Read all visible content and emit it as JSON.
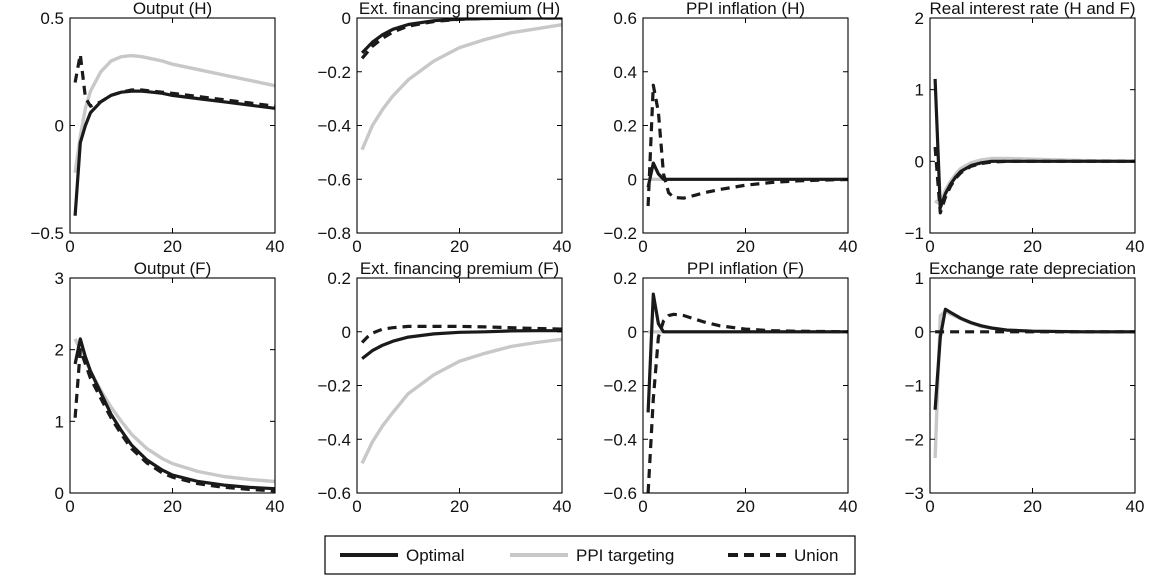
{
  "colors": {
    "optimal": "#1a1a1a",
    "ppi": "#c8c8c8",
    "union": "#1a1a1a",
    "axis": "#000000"
  },
  "legend": [
    {
      "name": "Optimal",
      "style": "solid-dark"
    },
    {
      "name": "PPI targeting",
      "style": "solid-light"
    },
    {
      "name": "Union",
      "style": "dashed-dark"
    }
  ],
  "chart_data": [
    {
      "type": "line",
      "title": "Output (H)",
      "xlim": [
        0,
        40
      ],
      "ylim": [
        -0.5,
        0.5
      ],
      "xticks": [
        {
          "v": 0,
          "t": "0"
        },
        {
          "v": 20,
          "t": "20"
        },
        {
          "v": 40,
          "t": "40"
        }
      ],
      "yticks": [
        {
          "v": -0.5,
          "t": "−0.5"
        },
        {
          "v": 0,
          "t": "0"
        },
        {
          "v": 0.5,
          "t": "0.5"
        }
      ],
      "series": [
        {
          "name": "Optimal",
          "x": [
            1,
            2,
            3,
            4,
            6,
            8,
            10,
            12,
            14,
            16,
            18,
            20,
            25,
            30,
            35,
            40
          ],
          "y": [
            -0.42,
            -0.08,
            0.0,
            0.06,
            0.11,
            0.14,
            0.155,
            0.16,
            0.16,
            0.155,
            0.15,
            0.14,
            0.125,
            0.11,
            0.095,
            0.08
          ]
        },
        {
          "name": "PPI targeting",
          "x": [
            1,
            2,
            3,
            4,
            6,
            8,
            10,
            12,
            14,
            16,
            18,
            20,
            25,
            30,
            35,
            40
          ],
          "y": [
            -0.22,
            -0.05,
            0.08,
            0.16,
            0.25,
            0.3,
            0.32,
            0.325,
            0.32,
            0.31,
            0.3,
            0.285,
            0.26,
            0.235,
            0.21,
            0.185
          ]
        },
        {
          "name": "Union",
          "x": [
            1,
            2,
            3,
            4,
            5,
            6,
            8,
            10,
            12,
            14,
            16,
            18,
            20,
            25,
            30,
            35,
            40
          ],
          "y": [
            0.2,
            0.33,
            0.13,
            0.09,
            0.1,
            0.11,
            0.14,
            0.155,
            0.165,
            0.165,
            0.16,
            0.155,
            0.15,
            0.135,
            0.12,
            0.105,
            0.09
          ]
        }
      ]
    },
    {
      "type": "line",
      "title": "Ext. financing premium (H)",
      "xlim": [
        0,
        40
      ],
      "ylim": [
        -0.8,
        0
      ],
      "xticks": [
        {
          "v": 0,
          "t": "0"
        },
        {
          "v": 20,
          "t": "20"
        },
        {
          "v": 40,
          "t": "40"
        }
      ],
      "yticks": [
        {
          "v": -0.8,
          "t": "−0.8"
        },
        {
          "v": -0.6,
          "t": "−0.6"
        },
        {
          "v": -0.4,
          "t": "−0.4"
        },
        {
          "v": -0.2,
          "t": "−0.2"
        },
        {
          "v": 0,
          "t": "0"
        }
      ],
      "series": [
        {
          "name": "Optimal",
          "x": [
            1,
            3,
            5,
            7,
            10,
            15,
            20,
            25,
            30,
            35,
            40
          ],
          "y": [
            -0.13,
            -0.09,
            -0.062,
            -0.042,
            -0.024,
            -0.01,
            -0.004,
            -0.002,
            -0.001,
            0,
            0
          ]
        },
        {
          "name": "PPI targeting",
          "x": [
            1,
            3,
            5,
            7,
            10,
            15,
            20,
            25,
            30,
            35,
            40
          ],
          "y": [
            -0.49,
            -0.4,
            -0.34,
            -0.29,
            -0.23,
            -0.16,
            -0.11,
            -0.08,
            -0.055,
            -0.04,
            -0.025
          ]
        },
        {
          "name": "Union",
          "x": [
            1,
            3,
            5,
            7,
            10,
            15,
            20,
            25,
            30,
            35,
            40
          ],
          "y": [
            -0.15,
            -0.105,
            -0.075,
            -0.052,
            -0.03,
            -0.013,
            -0.005,
            -0.002,
            -0.001,
            0,
            0
          ]
        }
      ]
    },
    {
      "type": "line",
      "title": "PPI inflation (H)",
      "xlim": [
        0,
        40
      ],
      "ylim": [
        -0.2,
        0.6
      ],
      "xticks": [
        {
          "v": 0,
          "t": "0"
        },
        {
          "v": 20,
          "t": "20"
        },
        {
          "v": 40,
          "t": "40"
        }
      ],
      "yticks": [
        {
          "v": -0.2,
          "t": "−0.2"
        },
        {
          "v": 0,
          "t": "0"
        },
        {
          "v": 0.2,
          "t": "0.2"
        },
        {
          "v": 0.4,
          "t": "0.4"
        },
        {
          "v": 0.6,
          "t": "0.6"
        }
      ],
      "series": [
        {
          "name": "Optimal",
          "x": [
            1,
            2,
            3,
            4,
            5,
            10,
            20,
            30,
            40
          ],
          "y": [
            -0.03,
            0.06,
            0.02,
            0.0,
            0.0,
            0.0,
            0.0,
            0.0,
            0.0
          ]
        },
        {
          "name": "PPI targeting",
          "x": [
            1,
            10,
            20,
            30,
            40
          ],
          "y": [
            0.0,
            0.0,
            0.0,
            0.0,
            0.0
          ]
        },
        {
          "name": "Union",
          "x": [
            1,
            2,
            3,
            4,
            5,
            6,
            8,
            10,
            12,
            15,
            20,
            25,
            30,
            35,
            40
          ],
          "y": [
            -0.1,
            0.35,
            0.25,
            0.02,
            -0.05,
            -0.068,
            -0.07,
            -0.06,
            -0.05,
            -0.038,
            -0.022,
            -0.012,
            -0.006,
            -0.003,
            -0.001
          ]
        }
      ]
    },
    {
      "type": "line",
      "title": "Real interest rate (H and F)",
      "xlim": [
        0,
        40
      ],
      "ylim": [
        -1,
        2
      ],
      "xticks": [
        {
          "v": 0,
          "t": "0"
        },
        {
          "v": 20,
          "t": "20"
        },
        {
          "v": 40,
          "t": "40"
        }
      ],
      "yticks": [
        {
          "v": -1,
          "t": "−1"
        },
        {
          "v": 0,
          "t": "0"
        },
        {
          "v": 1,
          "t": "1"
        },
        {
          "v": 2,
          "t": "2"
        }
      ],
      "series": [
        {
          "name": "Optimal",
          "x": [
            1,
            2,
            3,
            4,
            5,
            6,
            8,
            10,
            12,
            15,
            20,
            30,
            40
          ],
          "y": [
            1.15,
            -0.65,
            -0.45,
            -0.32,
            -0.22,
            -0.14,
            -0.06,
            -0.02,
            0.0,
            0.0,
            0.0,
            0.0,
            0.0
          ]
        },
        {
          "name": "PPI targeting",
          "x": [
            1,
            2,
            3,
            4,
            5,
            6,
            8,
            10,
            12,
            15,
            20,
            30,
            40
          ],
          "y": [
            -0.55,
            -0.6,
            -0.4,
            -0.28,
            -0.18,
            -0.1,
            -0.02,
            0.02,
            0.04,
            0.04,
            0.03,
            0.01,
            0.0
          ]
        },
        {
          "name": "Union",
          "x": [
            1,
            2,
            3,
            4,
            5,
            6,
            8,
            10,
            12,
            15,
            20,
            30,
            40
          ],
          "y": [
            0.2,
            -0.72,
            -0.5,
            -0.35,
            -0.24,
            -0.16,
            -0.07,
            -0.03,
            -0.01,
            0.0,
            0.0,
            0.0,
            0.0
          ]
        }
      ]
    },
    {
      "type": "line",
      "title": "Output (F)",
      "xlim": [
        0,
        40
      ],
      "ylim": [
        0,
        3
      ],
      "xticks": [
        {
          "v": 0,
          "t": "0"
        },
        {
          "v": 20,
          "t": "20"
        },
        {
          "v": 40,
          "t": "40"
        }
      ],
      "yticks": [
        {
          "v": 0,
          "t": "0"
        },
        {
          "v": 1,
          "t": "1"
        },
        {
          "v": 2,
          "t": "2"
        },
        {
          "v": 3,
          "t": "3"
        }
      ],
      "series": [
        {
          "name": "Optimal",
          "x": [
            1,
            2,
            3,
            4,
            6,
            8,
            10,
            12,
            15,
            18,
            20,
            25,
            30,
            35,
            40
          ],
          "y": [
            1.8,
            2.15,
            1.9,
            1.7,
            1.4,
            1.1,
            0.87,
            0.67,
            0.46,
            0.32,
            0.25,
            0.16,
            0.11,
            0.08,
            0.06
          ]
        },
        {
          "name": "PPI targeting",
          "x": [
            1,
            2,
            3,
            4,
            6,
            8,
            10,
            12,
            15,
            18,
            20,
            25,
            30,
            35,
            40
          ],
          "y": [
            2.15,
            2.0,
            1.85,
            1.7,
            1.43,
            1.2,
            1.0,
            0.82,
            0.62,
            0.48,
            0.41,
            0.3,
            0.23,
            0.19,
            0.16
          ]
        },
        {
          "name": "Union",
          "x": [
            1,
            2,
            3,
            4,
            6,
            8,
            10,
            12,
            15,
            18,
            20,
            25,
            30,
            35,
            40
          ],
          "y": [
            1.05,
            2.0,
            1.8,
            1.6,
            1.32,
            1.05,
            0.82,
            0.62,
            0.42,
            0.28,
            0.22,
            0.13,
            0.08,
            0.05,
            0.03
          ]
        }
      ]
    },
    {
      "type": "line",
      "title": "Ext. financing premium (F)",
      "xlim": [
        0,
        40
      ],
      "ylim": [
        -0.6,
        0.2
      ],
      "xticks": [
        {
          "v": 0,
          "t": "0"
        },
        {
          "v": 20,
          "t": "20"
        },
        {
          "v": 40,
          "t": "40"
        }
      ],
      "yticks": [
        {
          "v": -0.6,
          "t": "−0.6"
        },
        {
          "v": -0.4,
          "t": "−0.4"
        },
        {
          "v": -0.2,
          "t": "−0.2"
        },
        {
          "v": 0,
          "t": "0"
        },
        {
          "v": 0.2,
          "t": "0.2"
        }
      ],
      "series": [
        {
          "name": "Optimal",
          "x": [
            1,
            3,
            5,
            7,
            10,
            15,
            20,
            25,
            30,
            35,
            40
          ],
          "y": [
            -0.1,
            -0.07,
            -0.05,
            -0.035,
            -0.02,
            -0.008,
            -0.002,
            0.0,
            0.003,
            0.004,
            0.004
          ]
        },
        {
          "name": "PPI targeting",
          "x": [
            1,
            3,
            5,
            7,
            10,
            15,
            20,
            25,
            30,
            35,
            40
          ],
          "y": [
            -0.49,
            -0.41,
            -0.35,
            -0.3,
            -0.23,
            -0.16,
            -0.11,
            -0.08,
            -0.055,
            -0.04,
            -0.028
          ]
        },
        {
          "name": "Union",
          "x": [
            1,
            2,
            3,
            5,
            7,
            10,
            15,
            20,
            25,
            30,
            35,
            40
          ],
          "y": [
            -0.04,
            -0.02,
            -0.005,
            0.01,
            0.015,
            0.02,
            0.02,
            0.02,
            0.018,
            0.015,
            0.012,
            0.01
          ]
        }
      ]
    },
    {
      "type": "line",
      "title": "PPI inflation (F)",
      "xlim": [
        0,
        40
      ],
      "ylim": [
        -0.6,
        0.2
      ],
      "xticks": [
        {
          "v": 0,
          "t": "0"
        },
        {
          "v": 20,
          "t": "20"
        },
        {
          "v": 40,
          "t": "40"
        }
      ],
      "yticks": [
        {
          "v": -0.6,
          "t": "−0.6"
        },
        {
          "v": -0.4,
          "t": "−0.4"
        },
        {
          "v": -0.2,
          "t": "−0.2"
        },
        {
          "v": 0,
          "t": "0"
        },
        {
          "v": 0.2,
          "t": "0.2"
        }
      ],
      "series": [
        {
          "name": "Optimal",
          "x": [
            1,
            2,
            3,
            4,
            5,
            10,
            20,
            30,
            40
          ],
          "y": [
            -0.3,
            0.14,
            0.03,
            0.0,
            0.0,
            0.0,
            0.0,
            0.0,
            0.0
          ]
        },
        {
          "name": "PPI targeting",
          "x": [
            1,
            10,
            20,
            30,
            40
          ],
          "y": [
            0.0,
            0.0,
            0.0,
            0.0,
            0.0
          ]
        },
        {
          "name": "Union",
          "x": [
            1,
            2,
            3,
            4,
            5,
            6,
            8,
            10,
            12,
            15,
            20,
            25,
            30,
            35,
            40
          ],
          "y": [
            -0.6,
            -0.25,
            -0.02,
            0.04,
            0.06,
            0.065,
            0.06,
            0.048,
            0.036,
            0.022,
            0.01,
            0.004,
            0.002,
            0.001,
            0.0
          ]
        }
      ]
    },
    {
      "type": "line",
      "title": "Exchange rate depreciation",
      "xlim": [
        0,
        40
      ],
      "ylim": [
        -3,
        1
      ],
      "xticks": [
        {
          "v": 0,
          "t": "0"
        },
        {
          "v": 20,
          "t": "20"
        },
        {
          "v": 40,
          "t": "40"
        }
      ],
      "yticks": [
        {
          "v": -3,
          "t": "−3"
        },
        {
          "v": -2,
          "t": "−2"
        },
        {
          "v": -1,
          "t": "−1"
        },
        {
          "v": 0,
          "t": "0"
        },
        {
          "v": 1,
          "t": "1"
        }
      ],
      "series": [
        {
          "name": "Optimal",
          "x": [
            1,
            2,
            3,
            4,
            6,
            8,
            10,
            12,
            15,
            20,
            30,
            40
          ],
          "y": [
            -1.45,
            -0.1,
            0.42,
            0.36,
            0.25,
            0.17,
            0.11,
            0.07,
            0.03,
            0.01,
            0.0,
            0.0
          ]
        },
        {
          "name": "PPI targeting",
          "x": [
            1,
            2,
            3,
            4,
            6,
            8,
            10,
            12,
            15,
            20,
            30,
            40
          ],
          "y": [
            -2.35,
            0.3,
            0.38,
            0.33,
            0.24,
            0.16,
            0.1,
            0.07,
            0.03,
            0.01,
            0.0,
            0.0
          ]
        },
        {
          "name": "Union",
          "x": [
            1,
            10,
            20,
            30,
            40
          ],
          "y": [
            0.0,
            0.0,
            0.0,
            0.0,
            0.0
          ]
        }
      ]
    }
  ]
}
